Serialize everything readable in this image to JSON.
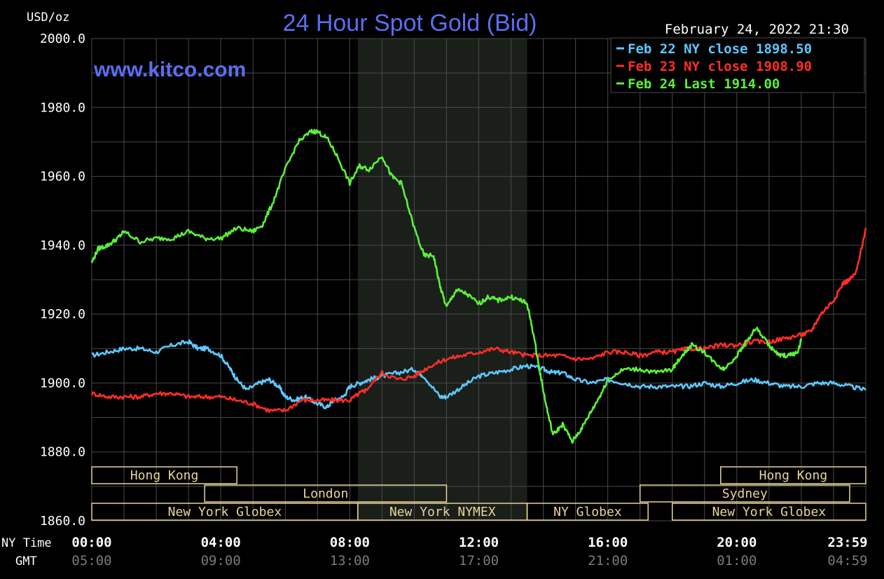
{
  "colors": {
    "background": "#000000",
    "grid": "#4a4a4a",
    "nymex_band": "#1a1f1a",
    "axis_text": "#ffffff",
    "gmt_text": "#7a7a7a",
    "title": "#5b6ef0",
    "session_box": "#e7d39a",
    "session_text": "#e7d39a",
    "feb22": "#5cc8ff",
    "feb23": "#ff2e26",
    "feb24": "#5cf03a"
  },
  "chart_data": {
    "type": "line",
    "title": "24 Hour Spot Gold (Bid)",
    "watermark": "www.kitco.com",
    "timestamp": "February 24, 2022 21:30",
    "ylabel": "USD/oz",
    "ylim": [
      1860,
      2000
    ],
    "yticks": [
      "2000.0",
      "1980.0",
      "1960.0",
      "1940.0",
      "1920.0",
      "1900.0",
      "1880.0",
      "1860.0"
    ],
    "xlim": [
      0,
      24
    ],
    "xrow_labels": {
      "ny": "NY Time",
      "gmt": "GMT"
    },
    "xticks_ny": [
      "00:00",
      "04:00",
      "08:00",
      "12:00",
      "16:00",
      "20:00",
      "23:59"
    ],
    "xticks_gmt": [
      "05:00",
      "09:00",
      "13:00",
      "17:00",
      "21:00",
      "01:00",
      "04:59"
    ],
    "legend": [
      {
        "label": "Feb 22 NY close 1898.50",
        "series": 0
      },
      {
        "label": "Feb 23 NY close 1908.90",
        "series": 1
      },
      {
        "label": "Feb 24 Last 1914.00",
        "series": 2
      }
    ],
    "sessions": [
      {
        "label": "Hong Kong",
        "row": 0,
        "start": 0,
        "end": 4.5
      },
      {
        "label": "Hong Kong",
        "row": 0,
        "start": 19.5,
        "end": 24
      },
      {
        "label": "London",
        "row": 1,
        "start": 3.5,
        "end": 11
      },
      {
        "label": "Sydney",
        "row": 1,
        "start": 17,
        "end": 23.5
      },
      {
        "label": "New York Globex",
        "row": 2,
        "start": 0,
        "end": 8.25
      },
      {
        "label": "New York NYMEX",
        "row": 2,
        "start": 8.25,
        "end": 13.5
      },
      {
        "label": "NY Globex",
        "row": 2,
        "start": 13.5,
        "end": 17.25
      },
      {
        "label": "New York Globex",
        "row": 2,
        "start": 18,
        "end": 24
      }
    ],
    "nymex_shade": [
      8.25,
      13.5
    ],
    "series": [
      {
        "color_key": "feb22",
        "x": [
          0,
          0.5,
          1,
          1.5,
          2,
          2.5,
          3,
          3.3,
          3.6,
          4,
          4.3,
          4.5,
          4.8,
          5.2,
          5.5,
          5.8,
          6,
          6.3,
          6.6,
          7,
          7.3,
          7.5,
          7.8,
          8,
          8.3,
          8.6,
          9,
          9.5,
          10,
          10.3,
          10.8,
          11,
          11.5,
          12,
          12.5,
          13,
          13.5,
          14,
          14.3,
          14.6,
          15,
          15.5,
          16,
          16.5,
          17,
          17.5,
          18,
          18.5,
          19,
          19.5,
          20,
          20.5,
          21,
          21.5,
          22,
          22.5,
          23,
          23.5,
          24
        ],
        "values": [
          1908,
          1909,
          1910,
          1910,
          1909,
          1911,
          1912,
          1910,
          1910,
          1908,
          1904,
          1901,
          1898,
          1900,
          1901,
          1899,
          1896,
          1895,
          1896,
          1894,
          1893,
          1895,
          1896,
          1899,
          1900,
          1901,
          1902,
          1903,
          1904,
          1902,
          1896,
          1896,
          1899,
          1902,
          1903,
          1904,
          1905,
          1904,
          1903,
          1903,
          1901,
          1900,
          1901,
          1900,
          1899,
          1899,
          1899,
          1899,
          1900,
          1899,
          1900,
          1901,
          1900,
          1899,
          1899,
          1900,
          1900,
          1899,
          1898
        ]
      },
      {
        "color_key": "feb23",
        "x": [
          0,
          0.5,
          1,
          1.5,
          2,
          2.5,
          3,
          3.5,
          4,
          4.5,
          5,
          5.5,
          6,
          6.5,
          7,
          7.5,
          8,
          8.3,
          8.5,
          9,
          9.5,
          10,
          10.5,
          11,
          11.5,
          12,
          12.5,
          13,
          13.5,
          14,
          14.5,
          15,
          15.5,
          16,
          16.5,
          17,
          17.5,
          18,
          18.5,
          19,
          19.5,
          20,
          20.5,
          21,
          21.5,
          22,
          22.3,
          22.6,
          23,
          23.3,
          23.5,
          23.7,
          24
        ],
        "values": [
          1897,
          1896,
          1896,
          1896,
          1897,
          1897,
          1896,
          1896,
          1896,
          1895,
          1894,
          1892,
          1892,
          1895,
          1895,
          1895,
          1895,
          1897,
          1898,
          1903,
          1901,
          1902,
          1905,
          1907,
          1908,
          1909,
          1910,
          1909,
          1908,
          1908,
          1908,
          1907,
          1907,
          1909,
          1909,
          1908,
          1909,
          1909,
          1910,
          1910,
          1911,
          1911,
          1912,
          1912,
          1913,
          1914,
          1915,
          1920,
          1924,
          1929,
          1930,
          1932,
          1945
        ]
      },
      {
        "color_key": "feb24",
        "x": [
          0,
          0.2,
          0.5,
          0.8,
          1,
          1.5,
          2,
          2.5,
          3,
          3.5,
          4,
          4.5,
          5,
          5.3,
          5.6,
          6,
          6.4,
          6.8,
          7,
          7.3,
          7.6,
          8,
          8.3,
          8.6,
          9,
          9.3,
          9.6,
          10,
          10.3,
          10.6,
          10.8,
          11,
          11.3,
          11.6,
          12,
          12.3,
          12.6,
          13,
          13.3,
          13.5,
          13.7,
          13.9,
          14.1,
          14.3,
          14.6,
          14.9,
          15.2,
          15.5,
          15.8,
          16,
          16.5,
          17,
          17.5,
          18,
          18.3,
          18.6,
          19,
          19.3,
          19.6,
          20,
          20.3,
          20.6,
          21,
          21.3,
          21.6,
          21.9,
          22
        ],
        "values": [
          1935,
          1939,
          1940,
          1942,
          1944,
          1941,
          1942,
          1942,
          1944,
          1942,
          1942,
          1945,
          1944,
          1946,
          1952,
          1962,
          1970,
          1973,
          1973,
          1971,
          1966,
          1958,
          1963,
          1962,
          1966,
          1960,
          1958,
          1945,
          1937,
          1937,
          1928,
          1922,
          1927,
          1926,
          1923,
          1925,
          1924,
          1925,
          1924,
          1923,
          1914,
          1903,
          1893,
          1885,
          1888,
          1883,
          1887,
          1892,
          1897,
          1901,
          1904,
          1904,
          1903,
          1904,
          1908,
          1911,
          1909,
          1906,
          1904,
          1908,
          1912,
          1916,
          1911,
          1908,
          1908,
          1909,
          1913
        ]
      }
    ]
  }
}
